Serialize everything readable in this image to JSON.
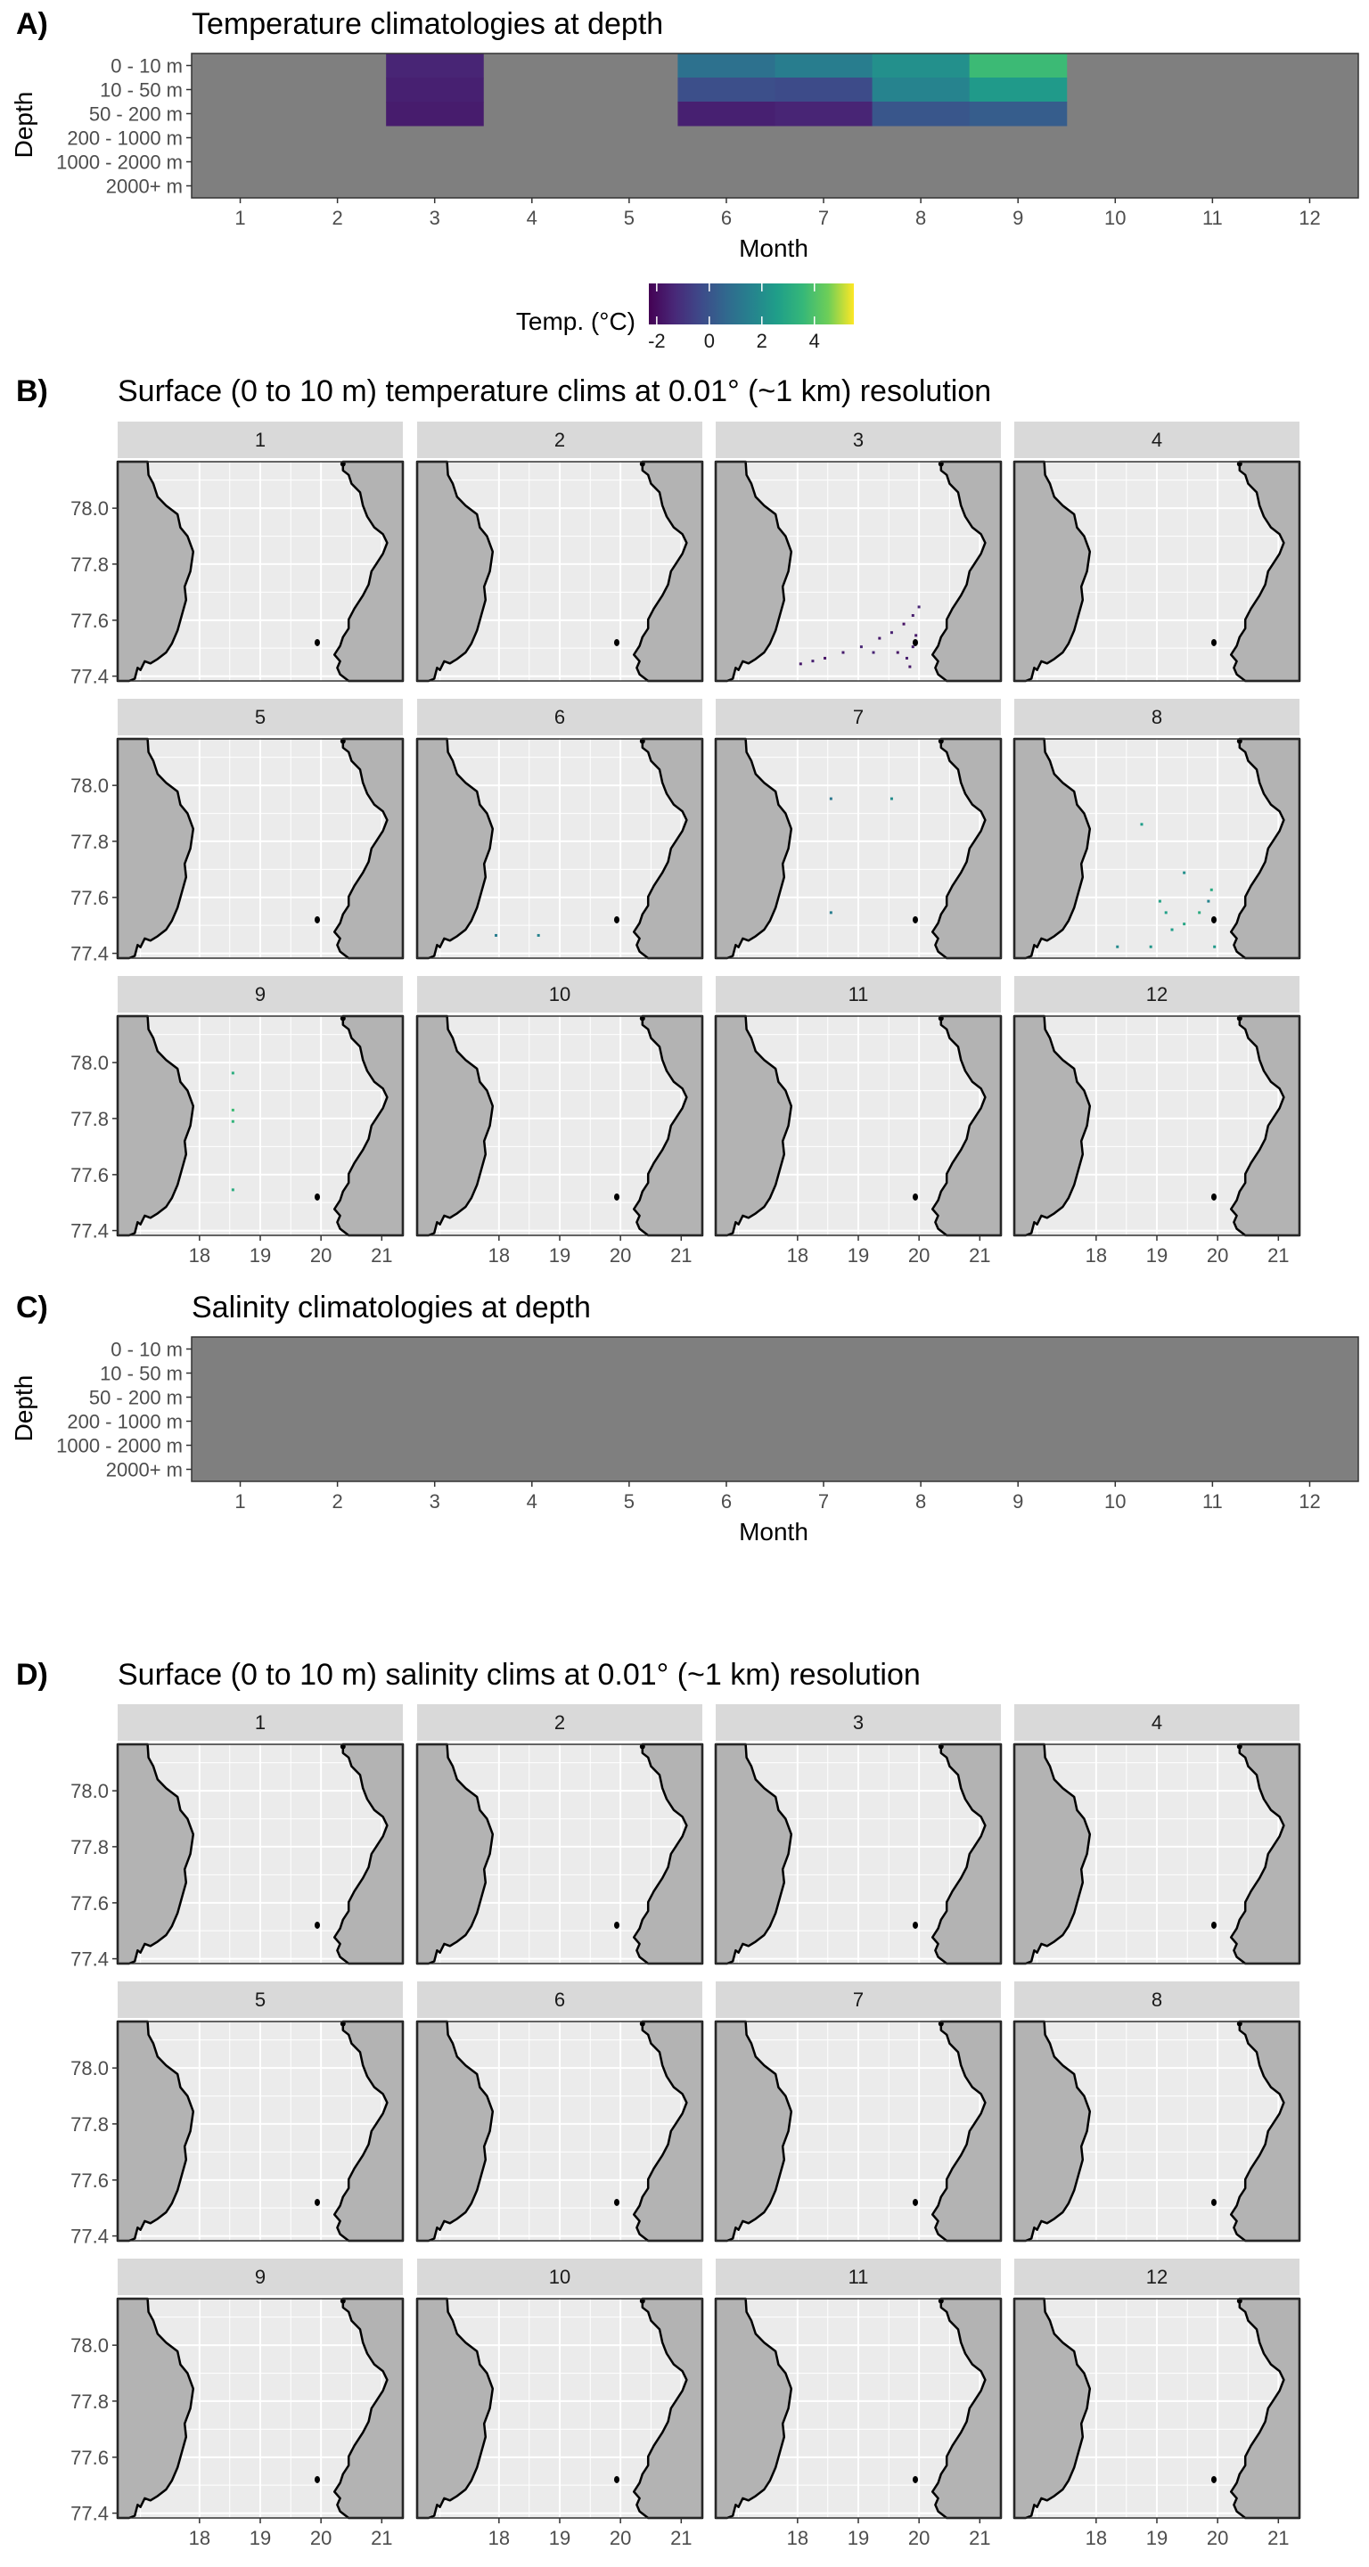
{
  "colors": {
    "na_fill": "#7f7f7f",
    "panel_bg": "#ebebeb",
    "grid": "#ffffff",
    "strip_bg": "#d9d9d9",
    "land": "#b3b3b3",
    "coast": "#000000"
  },
  "chart_data": [
    {
      "id": "A",
      "tag": "A)",
      "type": "heatmap",
      "title": "Temperature climatologies at depth",
      "xlabel": "Month",
      "ylabel": "Depth",
      "x": [
        1,
        2,
        3,
        4,
        5,
        6,
        7,
        8,
        9,
        10,
        11,
        12
      ],
      "y": [
        "0 - 10 m",
        "10 - 50 m",
        "50 - 200 m",
        "200 - 1000 m",
        "1000 - 2000 m",
        "2000+ m"
      ],
      "values": [
        [
          null,
          null,
          -1.5,
          null,
          null,
          0.6,
          1.0,
          1.6,
          3.0,
          null,
          null,
          null
        ],
        [
          null,
          null,
          -1.6,
          null,
          null,
          -0.4,
          -0.5,
          1.2,
          1.9,
          null,
          null,
          null
        ],
        [
          null,
          null,
          -1.7,
          null,
          null,
          -1.6,
          -1.5,
          -0.2,
          0.0,
          null,
          null,
          null
        ],
        [
          null,
          null,
          null,
          null,
          null,
          null,
          null,
          null,
          null,
          null,
          null,
          null
        ],
        [
          null,
          null,
          null,
          null,
          null,
          null,
          null,
          null,
          null,
          null,
          null,
          null
        ],
        [
          null,
          null,
          null,
          null,
          null,
          null,
          null,
          null,
          null,
          null,
          null,
          null
        ]
      ],
      "missing": "grey",
      "legend": {
        "title": "Temp. (°C)",
        "ticks": [
          "-2",
          "0",
          "2",
          "4"
        ],
        "tick_values": [
          -2,
          0,
          2,
          4
        ],
        "range": [
          -2.3,
          5.5
        ],
        "palette": "viridis",
        "placement": "bottom"
      }
    },
    {
      "id": "B",
      "tag": "B)",
      "type": "map-facets",
      "title": "Surface (0 to 10 m) temperature clims at 0.01° (~1 km) resolution",
      "facets": [
        "1",
        "2",
        "3",
        "4",
        "5",
        "6",
        "7",
        "8",
        "9",
        "10",
        "11",
        "12"
      ],
      "xticks": [
        "18",
        "19",
        "20",
        "21"
      ],
      "yticks": [
        "78.0",
        "77.8",
        "77.6",
        "77.4"
      ],
      "xlim": [
        17.2,
        21.9
      ],
      "ylim": [
        77.4,
        78.17
      ],
      "grid": true,
      "observations": {
        "3": [
          [
            18.6,
            77.46,
            -1.8
          ],
          [
            18.8,
            77.47,
            -1.6
          ],
          [
            19.0,
            77.48,
            -1.9
          ],
          [
            19.3,
            77.5,
            -1.7
          ],
          [
            19.6,
            77.52,
            -1.5
          ],
          [
            19.9,
            77.55,
            -1.8
          ],
          [
            20.1,
            77.57,
            -1.6
          ],
          [
            20.3,
            77.6,
            -1.9
          ],
          [
            20.45,
            77.63,
            -1.7
          ],
          [
            20.55,
            77.66,
            -1.5
          ],
          [
            20.5,
            77.56,
            -1.8
          ],
          [
            20.45,
            77.52,
            -1.6
          ],
          [
            20.35,
            77.48,
            -1.7
          ],
          [
            20.2,
            77.5,
            -1.9
          ],
          [
            19.8,
            77.5,
            -1.5
          ],
          [
            20.4,
            77.45,
            -1.8
          ]
        ],
        "6": [
          [
            18.5,
            77.48,
            1.0
          ],
          [
            19.2,
            77.48,
            1.2
          ]
        ],
        "7": [
          [
            19.1,
            77.96,
            0.8
          ],
          [
            20.1,
            77.96,
            1.5
          ],
          [
            19.1,
            77.56,
            1.0
          ]
        ],
        "8": [
          [
            19.3,
            77.87,
            2.0
          ],
          [
            19.6,
            77.6,
            2.2
          ],
          [
            20.0,
            77.7,
            1.6
          ],
          [
            20.25,
            77.56,
            2.5
          ],
          [
            20.4,
            77.6,
            1.2
          ],
          [
            19.8,
            77.5,
            2.0
          ],
          [
            19.45,
            77.44,
            1.8
          ],
          [
            20.0,
            77.52,
            2.3
          ],
          [
            18.9,
            77.44,
            1.4
          ],
          [
            20.5,
            77.44,
            1.9
          ],
          [
            19.7,
            77.56,
            2.1
          ],
          [
            20.45,
            77.64,
            2.4
          ]
        ],
        "9": [
          [
            19.1,
            77.97,
            2.6
          ],
          [
            19.1,
            77.84,
            3.0
          ],
          [
            19.1,
            77.8,
            2.8
          ],
          [
            19.1,
            77.56,
            2.5
          ]
        ]
      }
    },
    {
      "id": "C",
      "tag": "C)",
      "type": "heatmap",
      "title": "Salinity climatologies at depth",
      "xlabel": "Month",
      "ylabel": "Depth",
      "x": [
        1,
        2,
        3,
        4,
        5,
        6,
        7,
        8,
        9,
        10,
        11,
        12
      ],
      "y": [
        "0 - 10 m",
        "10 - 50 m",
        "50 - 200 m",
        "200 - 1000 m",
        "1000 - 2000 m",
        "2000+ m"
      ],
      "values": [
        [
          null,
          null,
          null,
          null,
          null,
          null,
          null,
          null,
          null,
          null,
          null,
          null
        ],
        [
          null,
          null,
          null,
          null,
          null,
          null,
          null,
          null,
          null,
          null,
          null,
          null
        ],
        [
          null,
          null,
          null,
          null,
          null,
          null,
          null,
          null,
          null,
          null,
          null,
          null
        ],
        [
          null,
          null,
          null,
          null,
          null,
          null,
          null,
          null,
          null,
          null,
          null,
          null
        ],
        [
          null,
          null,
          null,
          null,
          null,
          null,
          null,
          null,
          null,
          null,
          null,
          null
        ],
        [
          null,
          null,
          null,
          null,
          null,
          null,
          null,
          null,
          null,
          null,
          null,
          null
        ]
      ],
      "missing": "grey"
    },
    {
      "id": "D",
      "tag": "D)",
      "type": "map-facets",
      "title": "Surface (0 to 10 m) salinity clims at 0.01° (~1 km) resolution",
      "facets": [
        "1",
        "2",
        "3",
        "4",
        "5",
        "6",
        "7",
        "8",
        "9",
        "10",
        "11",
        "12"
      ],
      "xticks": [
        "18",
        "19",
        "20",
        "21"
      ],
      "yticks": [
        "78.0",
        "77.8",
        "77.6",
        "77.4"
      ],
      "xlim": [
        17.2,
        21.9
      ],
      "ylim": [
        77.4,
        78.17
      ],
      "grid": true,
      "observations": {}
    }
  ]
}
